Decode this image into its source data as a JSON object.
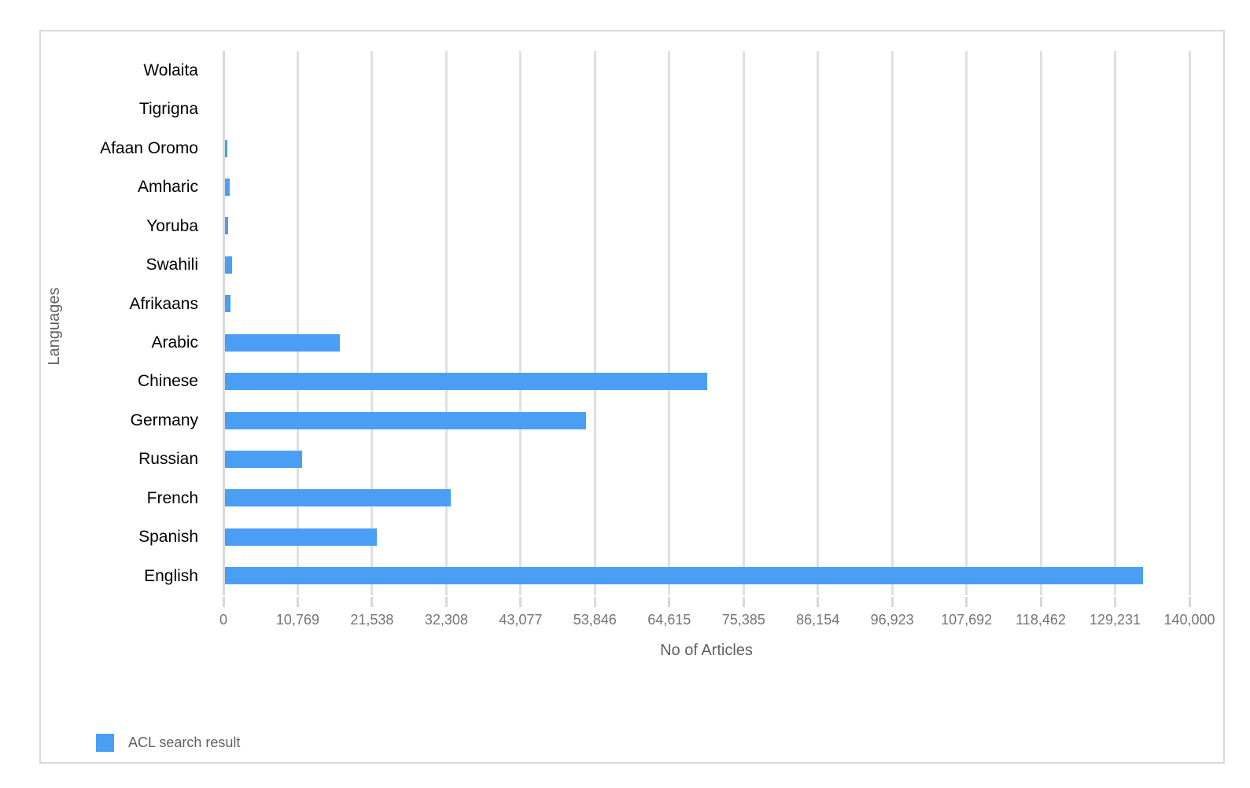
{
  "chart_data": {
    "type": "bar",
    "orientation": "horizontal",
    "title": "",
    "xlabel": "No of Articles",
    "ylabel": "Languages",
    "categories": [
      "Wolaita",
      "Tigrigna",
      "Afaan Oromo",
      "Amharic",
      "Yoruba",
      "Swahili",
      "Afrikaans",
      "Arabic",
      "Chinese",
      "Germany",
      "Russian",
      "French",
      "Spanish",
      "English"
    ],
    "values": [
      0,
      0,
      300,
      700,
      450,
      1000,
      800,
      16600,
      69900,
      52300,
      11200,
      32700,
      22000,
      133000
    ],
    "xlim": [
      0,
      140000
    ],
    "xticks": [
      0,
      10769,
      21538,
      32308,
      43077,
      53846,
      64615,
      75385,
      86154,
      96923,
      107692,
      118462,
      129231,
      140000
    ],
    "xtick_labels": [
      "0",
      "10,769",
      "21,538",
      "32,308",
      "43,077",
      "53,846",
      "64,615",
      "75,385",
      "86,154",
      "96,923",
      "107,692",
      "118,462",
      "129,231",
      "140,000"
    ],
    "grid": "vertical",
    "legend_position": "bottom-left",
    "legend": [
      {
        "label": "ACL search result",
        "color": "#4a9ff5"
      }
    ]
  },
  "colors": {
    "bar": "#4a9ff5",
    "gridline": "#e0e0e0",
    "zero_line": "#d8d8d8",
    "frame_border": "#d9d9d9",
    "category_label": "#000000",
    "tick_label": "#757575",
    "axis_title": "#616161",
    "legend_text": "#616161",
    "background": "#ffffff"
  }
}
